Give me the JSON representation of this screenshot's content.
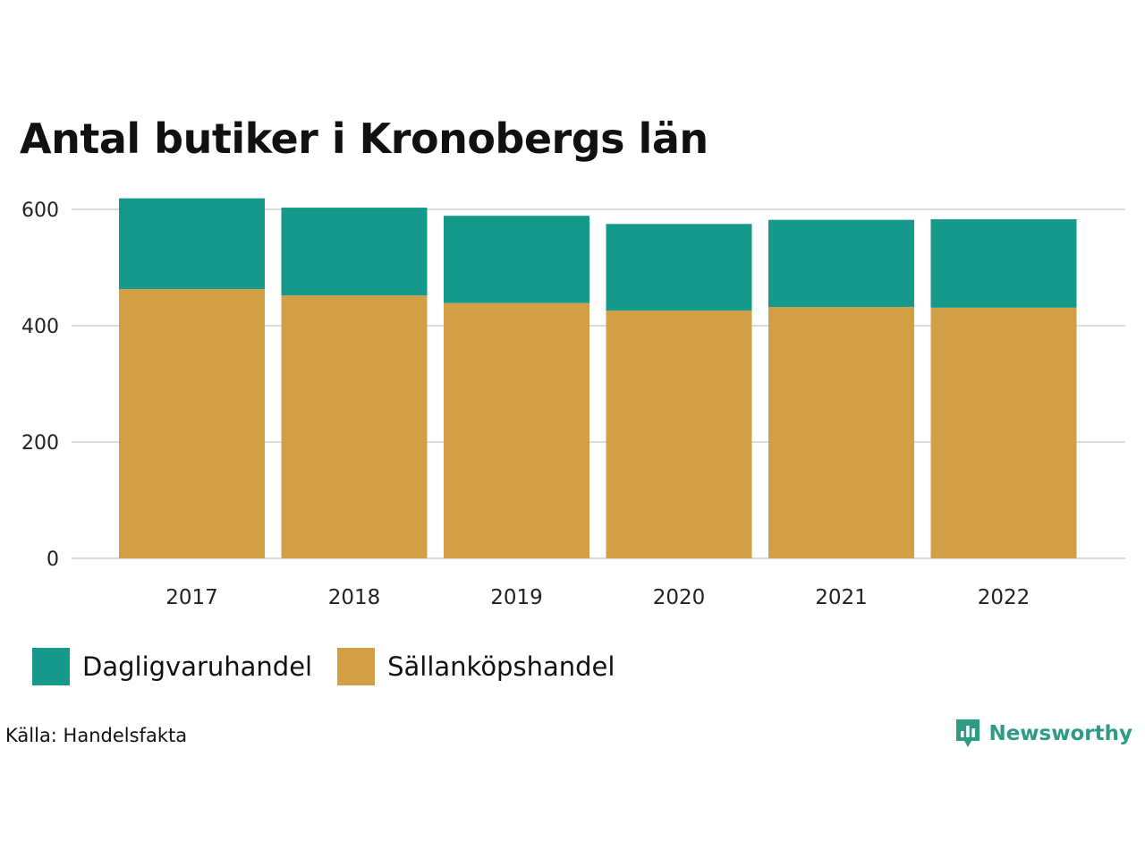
{
  "chart_data": {
    "type": "bar",
    "stacked": true,
    "title": "Antal butiker i Kronobergs län",
    "categories": [
      "2017",
      "2018",
      "2019",
      "2020",
      "2021",
      "2022"
    ],
    "series": [
      {
        "name": "Sällanköpshandel",
        "color": "#d29f45",
        "values": [
          463,
          452,
          439,
          426,
          432,
          431
        ]
      },
      {
        "name": "Dagligvaruhandel",
        "color": "#15998a",
        "values": [
          156,
          151,
          150,
          149,
          150,
          152
        ]
      }
    ],
    "ylim": [
      0,
      600
    ],
    "yticks": [
      0,
      200,
      400,
      600
    ],
    "xlabel": "",
    "ylabel": "",
    "grid": true,
    "legend_position": "bottom-left"
  },
  "legend": [
    {
      "label": "Dagligvaruhandel",
      "color": "#15998a"
    },
    {
      "label": "Sällanköpshandel",
      "color": "#d29f45"
    }
  ],
  "source": "Källa: Handelsfakta",
  "brand": {
    "name": "Newsworthy",
    "color": "#2e9c85"
  }
}
